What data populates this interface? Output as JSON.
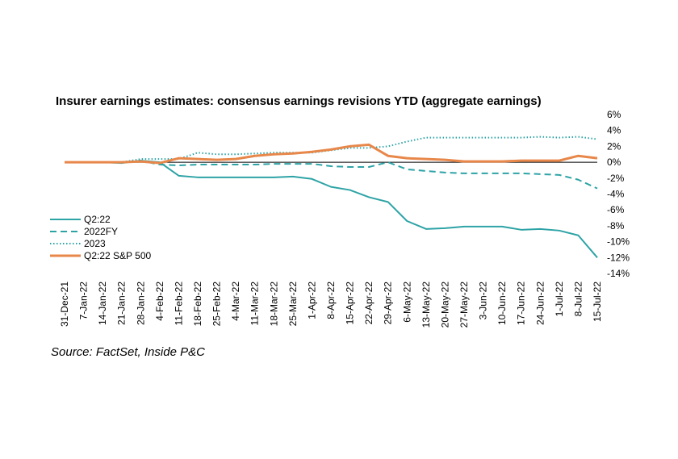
{
  "chart_data": {
    "type": "line",
    "title": "Insurer earnings estimates: consensus earnings revisions YTD (aggregate earnings)",
    "source": "Source: FactSet, Inside P&C",
    "xlabel": "",
    "ylabel": "",
    "ylim": [
      -14,
      6
    ],
    "yticks": [
      "6%",
      "4%",
      "2%",
      "0%",
      "-2%",
      "-4%",
      "-6%",
      "-8%",
      "-10%",
      "-12%",
      "-14%"
    ],
    "ytick_values": [
      6,
      4,
      2,
      0,
      -2,
      -4,
      -6,
      -8,
      -10,
      -12,
      -14
    ],
    "categories": [
      "31-Dec-21",
      "7-Jan-22",
      "14-Jan-22",
      "21-Jan-22",
      "28-Jan-22",
      "4-Feb-22",
      "11-Feb-22",
      "18-Feb-22",
      "25-Feb-22",
      "4-Mar-22",
      "11-Mar-22",
      "18-Mar-22",
      "25-Mar-22",
      "1-Apr-22",
      "8-Apr-22",
      "15-Apr-22",
      "22-Apr-22",
      "29-Apr-22",
      "6-May-22",
      "13-May-22",
      "20-May-22",
      "27-May-22",
      "3-Jun-22",
      "10-Jun-22",
      "17-Jun-22",
      "24-Jun-22",
      "1-Jul-22",
      "8-Jul-22",
      "15-Jul-22"
    ],
    "legend_position": "left",
    "series": [
      {
        "name": "Q2:22",
        "color": "#2ea3a6",
        "style": "solid",
        "values": [
          0,
          0,
          0,
          -0.1,
          0.2,
          0,
          -1.7,
          -1.9,
          -1.9,
          -1.9,
          -1.9,
          -1.9,
          -1.8,
          -2.1,
          -3.1,
          -3.5,
          -4.4,
          -5.0,
          -7.4,
          -8.4,
          -8.3,
          -8.1,
          -8.1,
          -8.1,
          -8.5,
          -8.4,
          -8.6,
          -9.2,
          -12.0
        ]
      },
      {
        "name": "2022FY",
        "color": "#2ea3a6",
        "style": "dashed",
        "values": [
          0,
          0,
          0,
          0,
          0.2,
          -0.3,
          -0.4,
          -0.3,
          -0.3,
          -0.3,
          -0.3,
          -0.2,
          -0.2,
          -0.2,
          -0.5,
          -0.6,
          -0.6,
          0.0,
          -0.9,
          -1.1,
          -1.3,
          -1.4,
          -1.4,
          -1.4,
          -1.4,
          -1.5,
          -1.6,
          -2.2,
          -3.3
        ]
      },
      {
        "name": "2023",
        "color": "#2ea3a6",
        "style": "dotted",
        "values": [
          0,
          0,
          0,
          0,
          0.4,
          0.4,
          0.4,
          1.2,
          1.0,
          1.0,
          1.1,
          1.2,
          1.2,
          1.2,
          1.5,
          1.8,
          1.8,
          2.0,
          2.6,
          3.1,
          3.1,
          3.1,
          3.1,
          3.1,
          3.1,
          3.2,
          3.1,
          3.2,
          2.9
        ]
      },
      {
        "name": "Q2:22 S&P 500",
        "color": "#e8874a",
        "style": "solid",
        "values": [
          0,
          0,
          0,
          0,
          0.1,
          -0.1,
          0.5,
          0.4,
          0.3,
          0.4,
          0.8,
          1.0,
          1.1,
          1.3,
          1.6,
          2.0,
          2.2,
          0.8,
          0.5,
          0.4,
          0.3,
          0.1,
          0.1,
          0.1,
          0.2,
          0.2,
          0.2,
          0.8,
          0.5
        ]
      }
    ]
  }
}
